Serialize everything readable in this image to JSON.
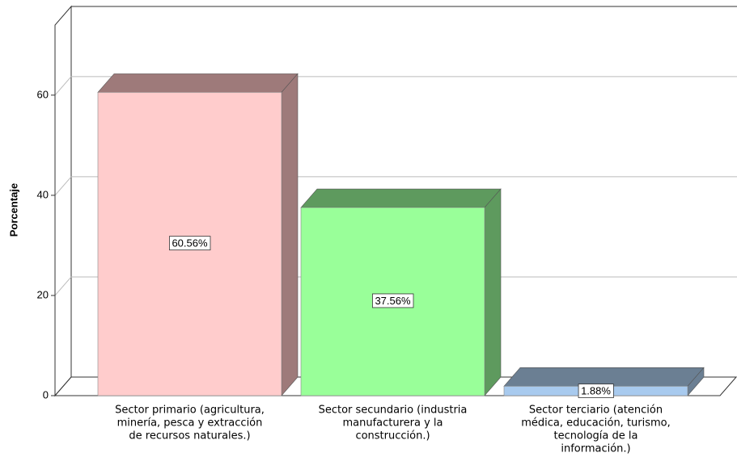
{
  "chart_data": {
    "type": "bar3d",
    "y_label": "Porcentaje",
    "categories": [
      [
        "Sector primario (agricultura,",
        "minería, pesca y extracción",
        "de recursos naturales.)"
      ],
      [
        "Sector secundario (industria",
        "manufacturera y la",
        "construcción.)"
      ],
      [
        "Sector terciario (atención",
        "médica, educación, turismo,",
        "tecnología de la",
        "información.)"
      ]
    ],
    "values": [
      60.56,
      37.56,
      1.88
    ],
    "value_labels": [
      "60.56%",
      "37.56%",
      "1.88%"
    ],
    "colors": [
      "#ffcccc",
      "#99ff99",
      "#a8caee"
    ],
    "side_colors": [
      "#9e7a7a",
      "#5e9a5e",
      "#6b7f93"
    ],
    "ylim": [
      0,
      74
    ],
    "yticks": [
      0,
      20,
      40,
      60
    ],
    "grid": true
  }
}
